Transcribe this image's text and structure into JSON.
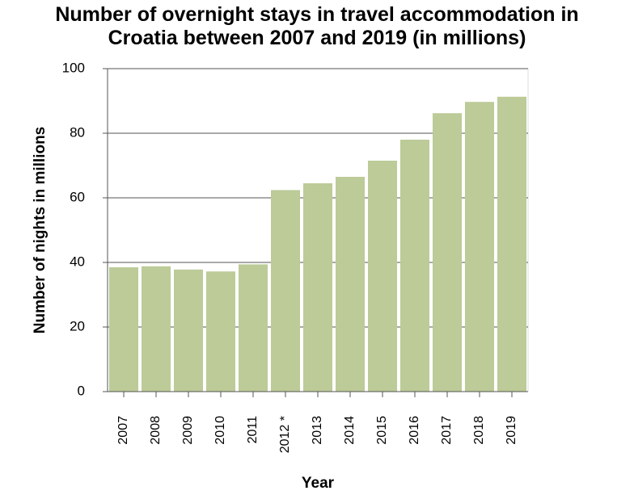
{
  "chart_data": {
    "type": "bar",
    "title": "Number of overnight stays in travel accommodation in Croatia between 2007 and 2019 (in millions)",
    "x_label": "Year",
    "y_label": "Number of nights in millions",
    "categories": [
      "2007",
      "2008",
      "2009",
      "2010",
      "2011",
      "2012 *",
      "2013",
      "2014",
      "2015",
      "2016",
      "2017",
      "2018",
      "2019"
    ],
    "values": [
      38.5,
      38.8,
      37.8,
      37.2,
      39.4,
      62.4,
      64.5,
      66.5,
      71.5,
      78,
      86.2,
      89.7,
      91.3
    ],
    "color": "#bccb98",
    "ylim": [
      0,
      100
    ],
    "yticks": [
      0,
      20,
      40,
      60,
      80,
      100
    ],
    "grid": true
  }
}
